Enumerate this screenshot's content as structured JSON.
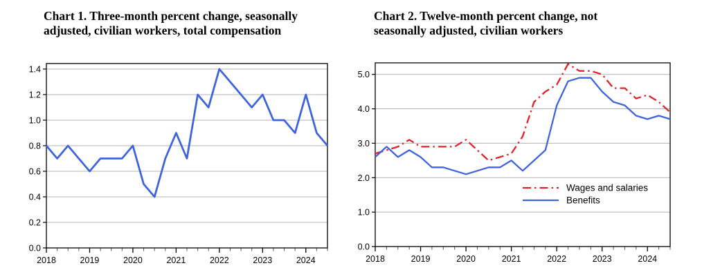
{
  "page": {
    "background": "#ffffff",
    "description_charts_count": "2"
  },
  "chart_data": [
    {
      "type": "line",
      "title": "Chart 1. Three-month percent change, seasonally adjusted, civilian workers, total compensation",
      "title_lines": [
        "Chart 1. Three-month percent change, seasonally",
        "adjusted, civilian workers, total compensation"
      ],
      "x_frequency": "quarterly",
      "x_start": "2018 Q1",
      "x_end": "2024 Q3",
      "x_tick_labels": [
        "2018",
        "2019",
        "2020",
        "2021",
        "2022",
        "2023",
        "2024"
      ],
      "y_tick_values": [
        0,
        0.2,
        0.4,
        0.6,
        0.8,
        1.0,
        1.2,
        1.4
      ],
      "y_tick_labels": [
        "0.0",
        "0.2",
        "0.4",
        "0.6",
        "0.8",
        "1.0",
        "1.2",
        "1.4"
      ],
      "ylim": [
        0,
        1.443
      ],
      "grid": "horizontal",
      "legend": null,
      "series": [
        {
          "name": "Total compensation",
          "color": "#3E63DE",
          "style": "solid",
          "values": [
            0.8,
            0.7,
            0.8,
            0.7,
            0.6,
            0.7,
            0.7,
            0.7,
            0.8,
            0.5,
            0.4,
            0.7,
            0.9,
            0.7,
            1.2,
            1.1,
            1.4,
            1.3,
            1.2,
            1.1,
            1.2,
            1.0,
            1.0,
            0.9,
            1.2,
            0.9,
            0.8
          ]
        }
      ]
    },
    {
      "type": "line",
      "title": "Chart 2. Twelve-month percent change, not seasonally adjusted, civilian workers",
      "title_lines": [
        "Chart 2. Twelve-month percent change, not",
        "seasonally adjusted, civilian workers"
      ],
      "x_frequency": "quarterly",
      "x_start": "2018 Q1",
      "x_end": "2024 Q3",
      "x_tick_labels": [
        "2018",
        "2019",
        "2020",
        "2021",
        "2022",
        "2023",
        "2024"
      ],
      "y_tick_values": [
        0,
        1.0,
        2.0,
        3.0,
        4.0,
        5.0
      ],
      "y_tick_labels": [
        "0.0",
        "1.0",
        "2.0",
        "3.0",
        "4.0",
        "5.0"
      ],
      "ylim": [
        0,
        5.335
      ],
      "grid": "horizontal",
      "legend": {
        "position": "inside-right-middle",
        "entries": [
          "Wages and salaries",
          "Benefits"
        ]
      },
      "series": [
        {
          "name": "Wages and salaries",
          "color": "#E2222A",
          "style": "dash-dot",
          "values": [
            2.7,
            2.8,
            2.9,
            3.1,
            2.9,
            2.9,
            2.9,
            2.9,
            3.1,
            2.8,
            2.5,
            2.6,
            2.7,
            3.2,
            4.2,
            4.5,
            4.7,
            5.3,
            5.1,
            5.1,
            5.0,
            4.6,
            4.6,
            4.3,
            4.4,
            4.2,
            3.9
          ]
        },
        {
          "name": "Benefits",
          "color": "#3E63DE",
          "style": "solid",
          "values": [
            2.6,
            2.9,
            2.6,
            2.8,
            2.6,
            2.3,
            2.3,
            2.2,
            2.1,
            2.2,
            2.3,
            2.3,
            2.5,
            2.2,
            2.5,
            2.8,
            4.1,
            4.8,
            4.9,
            4.9,
            4.5,
            4.2,
            4.1,
            3.8,
            3.7,
            3.8,
            3.7
          ]
        }
      ]
    }
  ]
}
